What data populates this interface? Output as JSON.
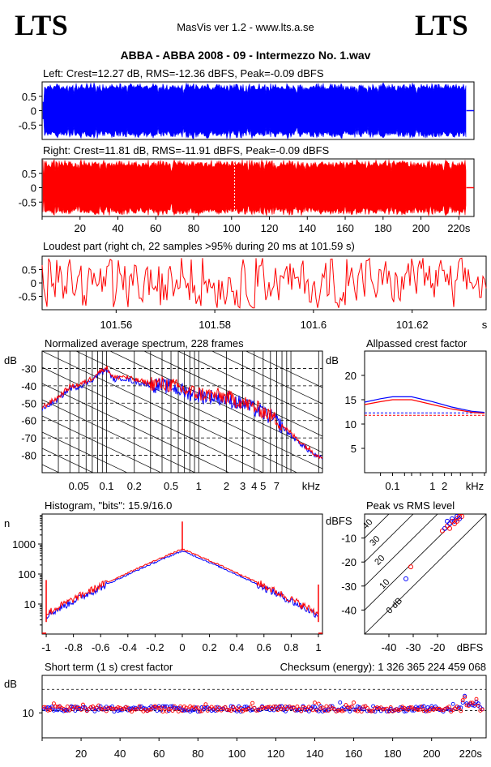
{
  "header": {
    "logo_left": "LTS",
    "logo_right": "LTS",
    "app_title": "MasVis ver 1.2 - www.lts.a.se",
    "file_title": "ABBA - ABBA 2008 - 09 - Intermezzo No. 1.wav"
  },
  "colors": {
    "left": "#0000ff",
    "right": "#ff0000",
    "grid": "#000000"
  },
  "chart_data": [
    {
      "id": "left-waveform",
      "type": "area",
      "title": "Left: Crest=12.27 dB, RMS=-12.36 dBFS, Peak=-0.09 dBFS",
      "yticks": [
        "0.5",
        "0",
        "-0.5"
      ],
      "ylim": [
        -1,
        1
      ],
      "xlim": [
        0,
        228
      ],
      "series": [
        {
          "color": "#0000ff",
          "peak": 0.99,
          "end_s": 224
        }
      ]
    },
    {
      "id": "right-waveform",
      "type": "area",
      "title": "Right: Crest=11.81 dB, RMS=-11.91 dBFS, Peak=-0.09 dBFS",
      "yticks": [
        "0.5",
        "0",
        "-0.5"
      ],
      "xticks": [
        "20",
        "40",
        "60",
        "80",
        "100",
        "120",
        "140",
        "160",
        "180",
        "200",
        "220s"
      ],
      "ylim": [
        -1,
        1
      ],
      "xlim": [
        0,
        228
      ],
      "marker_s": 101.59,
      "series": [
        {
          "color": "#ff0000",
          "peak": 0.99,
          "end_s": 224
        }
      ]
    },
    {
      "id": "loudest-part",
      "type": "line",
      "title": "Loudest part (right ch, 22 samples >95% during 20 ms at 101.59 s)",
      "yticks": [
        "0.5",
        "0",
        "-0.5"
      ],
      "xticks": [
        "101.56",
        "101.58",
        "101.6",
        "101.62",
        "s"
      ],
      "xlim": [
        101.545,
        101.635
      ],
      "ylim": [
        -1,
        1
      ]
    },
    {
      "id": "spectrum",
      "type": "line",
      "title": "Normalized average spectrum, 228 frames",
      "ylabel": "dB",
      "yticks": [
        "-30",
        "-40",
        "-50",
        "-60",
        "-70",
        "-80"
      ],
      "xticks": [
        "0.05",
        "0.1",
        "0.2",
        "0.5",
        "1",
        "2",
        "3",
        "4",
        "5",
        "7",
        "kHz"
      ],
      "xlim_khz": [
        0.02,
        22
      ],
      "ylim": [
        -90,
        -20
      ],
      "points_khz_db": [
        [
          0.02,
          -53
        ],
        [
          0.03,
          -47
        ],
        [
          0.04,
          -41
        ],
        [
          0.05,
          -40
        ],
        [
          0.06,
          -38
        ],
        [
          0.07,
          -36
        ],
        [
          0.08,
          -33
        ],
        [
          0.1,
          -30
        ],
        [
          0.12,
          -36
        ],
        [
          0.15,
          -35
        ],
        [
          0.2,
          -37
        ],
        [
          0.3,
          -39
        ],
        [
          0.5,
          -40
        ],
        [
          0.7,
          -43
        ],
        [
          1,
          -45
        ],
        [
          1.5,
          -46
        ],
        [
          2,
          -47
        ],
        [
          3,
          -50
        ],
        [
          5,
          -55
        ],
        [
          7,
          -60
        ],
        [
          10,
          -68
        ],
        [
          15,
          -76
        ],
        [
          20,
          -81
        ]
      ]
    },
    {
      "id": "allpassed-crest",
      "type": "line",
      "title": "Allpassed crest factor",
      "ylabel": "dB",
      "yticks": [
        "20",
        "15",
        "10",
        "5"
      ],
      "xticks": [
        "0.1",
        "1",
        "2",
        "kHz"
      ],
      "ylim": [
        0,
        25
      ],
      "series": [
        {
          "color": "#0000ff",
          "points_khz_db": [
            [
              0.02,
              14.5
            ],
            [
              0.05,
              15.2
            ],
            [
              0.1,
              15.6
            ],
            [
              0.3,
              15.6
            ],
            [
              1,
              14.6
            ],
            [
              3,
              13.5
            ],
            [
              10,
              12.6
            ],
            [
              20,
              12.4
            ]
          ],
          "reference_db": 12.3
        },
        {
          "color": "#ff0000",
          "points_khz_db": [
            [
              0.02,
              14.0
            ],
            [
              0.05,
              14.6
            ],
            [
              0.1,
              15.0
            ],
            [
              0.3,
              15.0
            ],
            [
              1,
              14.0
            ],
            [
              3,
              13.1
            ],
            [
              10,
              12.4
            ],
            [
              20,
              12.2
            ]
          ],
          "reference_db": 11.8
        }
      ]
    },
    {
      "id": "histogram",
      "type": "line",
      "title": "Histogram, \"bits\": 15.9/16.0",
      "ylabel": "n",
      "yticks": [
        "1000",
        "100",
        "10"
      ],
      "xticks": [
        "-1",
        "-0.8",
        "-0.6",
        "-0.4",
        "-0.2",
        "0",
        "0.2",
        "0.4",
        "0.6",
        "0.8",
        "1"
      ],
      "xlim": [
        -1.03,
        1.03
      ],
      "ylim_log10": [
        0,
        4
      ]
    },
    {
      "id": "peak-vs-rms",
      "type": "scatter",
      "title": "Peak vs RMS level",
      "ylabel": "dBFS",
      "yticks": [
        "-10",
        "-20",
        "-30",
        "-40"
      ],
      "xticks": [
        "-40",
        "-30",
        "-20",
        "dBFS"
      ],
      "diagonal_labels": [
        "40",
        "30",
        "20",
        "10",
        "0 dB"
      ],
      "xlim": [
        -50,
        0
      ],
      "ylim": [
        -50,
        0
      ],
      "points": [
        {
          "color": "#ff0000",
          "rms": -31,
          "peak": -22
        },
        {
          "color": "#0000ff",
          "rms": -33,
          "peak": -27
        },
        {
          "color": "#ff0000",
          "rms": -18,
          "peak": -7
        },
        {
          "color": "#0000ff",
          "rms": -17,
          "peak": -6
        },
        {
          "color": "#ff0000",
          "rms": -16,
          "peak": -5
        },
        {
          "color": "#0000ff",
          "rms": -15,
          "peak": -4
        },
        {
          "color": "#ff0000",
          "rms": -14,
          "peak": -3
        },
        {
          "color": "#0000ff",
          "rms": -13,
          "peak": -3
        },
        {
          "color": "#ff0000",
          "rms": -12,
          "peak": -2
        },
        {
          "color": "#0000ff",
          "rms": -12,
          "peak": -1
        },
        {
          "color": "#ff0000",
          "rms": -11,
          "peak": -1
        },
        {
          "color": "#ff0000",
          "rms": -13,
          "peak": -4
        },
        {
          "color": "#0000ff",
          "rms": -14,
          "peak": -2
        },
        {
          "color": "#ff0000",
          "rms": -10,
          "peak": -1
        },
        {
          "color": "#0000ff",
          "rms": -11,
          "peak": -2
        },
        {
          "color": "#ff0000",
          "rms": -15,
          "peak": -6
        },
        {
          "color": "#0000ff",
          "rms": -16,
          "peak": -3
        },
        {
          "color": "#ff0000",
          "rms": -12,
          "peak": -3
        }
      ]
    },
    {
      "id": "short-term-crest",
      "type": "scatter",
      "title": "Short term (1 s) crest factor",
      "checksum": "Checksum (energy):  1 326 365 224 459 068",
      "ylabel": "dB",
      "yticks": [
        "10"
      ],
      "xticks": [
        "20",
        "40",
        "60",
        "80",
        "100",
        "120",
        "140",
        "160",
        "180",
        "200",
        "220s"
      ],
      "xlim": [
        0,
        228
      ],
      "ylim": [
        0,
        25
      ]
    }
  ]
}
